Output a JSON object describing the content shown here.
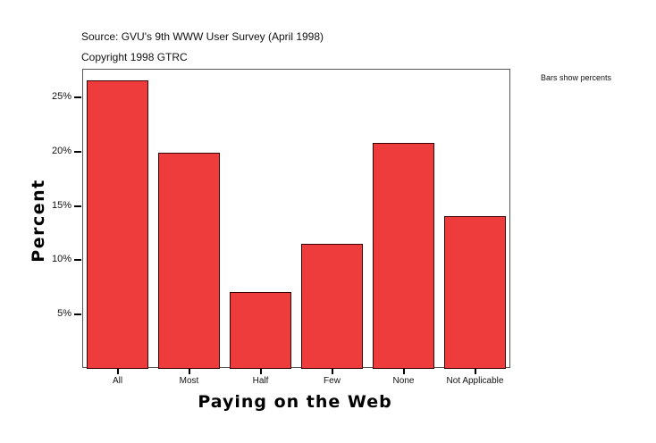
{
  "header": {
    "source": "Source: GVU's 9th WWW User Survey (April 1998)",
    "copyright": "Copyright 1998 GTRC"
  },
  "note": "Bars show percents",
  "colors": {
    "bar": "#ee3b3b",
    "bar_border": "#3a0000"
  },
  "axis": {
    "y_ticks": [
      "5%",
      "10%",
      "15%",
      "20%",
      "25%"
    ],
    "x_ticks": [
      "All",
      "Most",
      "Half",
      "Few",
      "None",
      "Not Applicable"
    ]
  },
  "chart_data": {
    "type": "bar",
    "title": "",
    "xlabel": "Paying on the Web",
    "ylabel": "Percent",
    "categories": [
      "All",
      "Most",
      "Half",
      "Few",
      "None",
      "Not Applicable"
    ],
    "values": [
      26.6,
      19.9,
      7.1,
      11.5,
      20.8,
      14.1
    ],
    "ylim": [
      0,
      27.5
    ],
    "y_ticks": [
      5,
      10,
      15,
      20,
      25
    ],
    "grid": false,
    "legend": null,
    "annotations": [
      "Bars show percents"
    ]
  }
}
